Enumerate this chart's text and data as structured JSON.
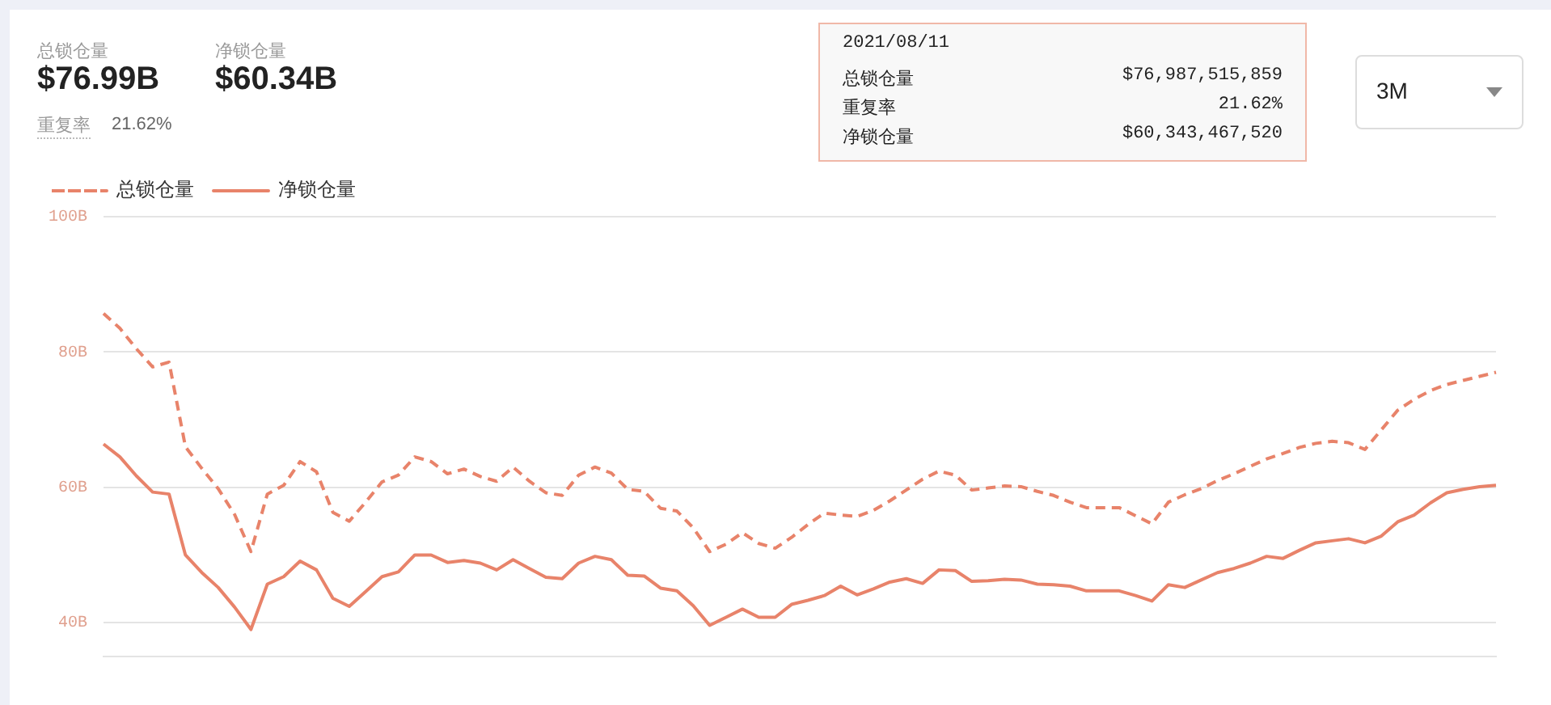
{
  "chart_data": {
    "type": "line",
    "categories": [
      null,
      null,
      null,
      null,
      null,
      null,
      null,
      null,
      null,
      null,
      null,
      null,
      null,
      null,
      null,
      null,
      null,
      null,
      null,
      null,
      null,
      null,
      null,
      null,
      null,
      null,
      null,
      null,
      null,
      null,
      null,
      null,
      null,
      null,
      null,
      null,
      null,
      null,
      null,
      null,
      null,
      null,
      null,
      null,
      null,
      null,
      null,
      null,
      null,
      null,
      null,
      null,
      null,
      null,
      null,
      null,
      null,
      null,
      null,
      null,
      null,
      null,
      null,
      null,
      null,
      null,
      null,
      null,
      null,
      null,
      null,
      null,
      null,
      null,
      null,
      null,
      null,
      null,
      null,
      null,
      null,
      null,
      null,
      null,
      null,
      null
    ],
    "series": [
      {
        "name": "总锁仓量",
        "color": "#e8836a",
        "line_style": "dashed",
        "values": [
          85.7,
          83.5,
          80.5,
          77.8,
          78.5,
          66,
          62.8,
          59.8,
          56,
          50.5,
          59,
          60.3,
          63.8,
          62.3,
          56.3,
          55,
          57.8,
          60.8,
          61.8,
          64.5,
          63.8,
          62,
          62.7,
          61.6,
          60.9,
          63,
          60.9,
          59.2,
          58.8,
          61.8,
          63,
          62.1,
          59.7,
          59.4,
          56.9,
          56.5,
          54,
          50.5,
          51.6,
          53.3,
          51.7,
          51,
          52.6,
          54.5,
          56.2,
          55.9,
          55.7,
          56.6,
          58,
          59.6,
          61.2,
          62.4,
          61.8,
          59.6,
          59.9,
          60.2,
          60.1,
          59.4,
          58.8,
          57.8,
          57,
          57,
          57,
          55.8,
          54.6,
          57.8,
          58.9,
          59.8,
          61,
          62,
          63.1,
          64.2,
          65,
          65.9,
          66.5,
          66.8,
          66.6,
          65.6,
          68.5,
          71.4,
          73,
          74.3,
          75.2,
          75.8,
          76.4,
          77
        ]
      },
      {
        "name": "净锁仓量",
        "color": "#e8836a",
        "line_style": "solid",
        "values": [
          66.4,
          64.5,
          61.7,
          59.3,
          59,
          50,
          47.4,
          45.2,
          42.3,
          39,
          45.7,
          46.8,
          49.1,
          47.8,
          43.6,
          42.4,
          44.6,
          46.8,
          47.5,
          50,
          50,
          48.9,
          49.2,
          48.8,
          47.8,
          49.3,
          48,
          46.7,
          46.5,
          48.8,
          49.8,
          49.3,
          47,
          46.9,
          45.1,
          44.7,
          42.5,
          39.6,
          40.8,
          42,
          40.8,
          40.8,
          42.7,
          43.3,
          44,
          45.4,
          44.1,
          45,
          46,
          46.5,
          45.8,
          47.8,
          47.7,
          46.1,
          46.2,
          46.4,
          46.3,
          45.7,
          45.6,
          45.4,
          44.7,
          44.7,
          44.7,
          44,
          43.2,
          45.6,
          45.2,
          46.3,
          47.4,
          48,
          48.8,
          49.8,
          49.5,
          50.7,
          51.8,
          52.1,
          52.4,
          51.8,
          52.8,
          54.9,
          55.9,
          57.7,
          59.2,
          59.7,
          60.1,
          60.3
        ]
      }
    ],
    "ylim": [
      35,
      100
    ],
    "yticks": [
      {
        "value": 40,
        "label": "40B"
      },
      {
        "value": 60,
        "label": "60B"
      },
      {
        "value": 80,
        "label": "80B"
      },
      {
        "value": 100,
        "label": "100B"
      }
    ],
    "grid": "y",
    "legend": "top left",
    "marker": "none",
    "tick_labels": "y",
    "annotations": [
      "总锁仓量",
      "$76.99B",
      "净锁仓量",
      "$60.34B",
      "重复率",
      "21.62%",
      "3M",
      "2021/08/11",
      "总锁仓量",
      "$76,987,515,859",
      "重复率",
      "21.62%",
      "净锁仓量",
      "$60,343,467,520"
    ]
  }
}
